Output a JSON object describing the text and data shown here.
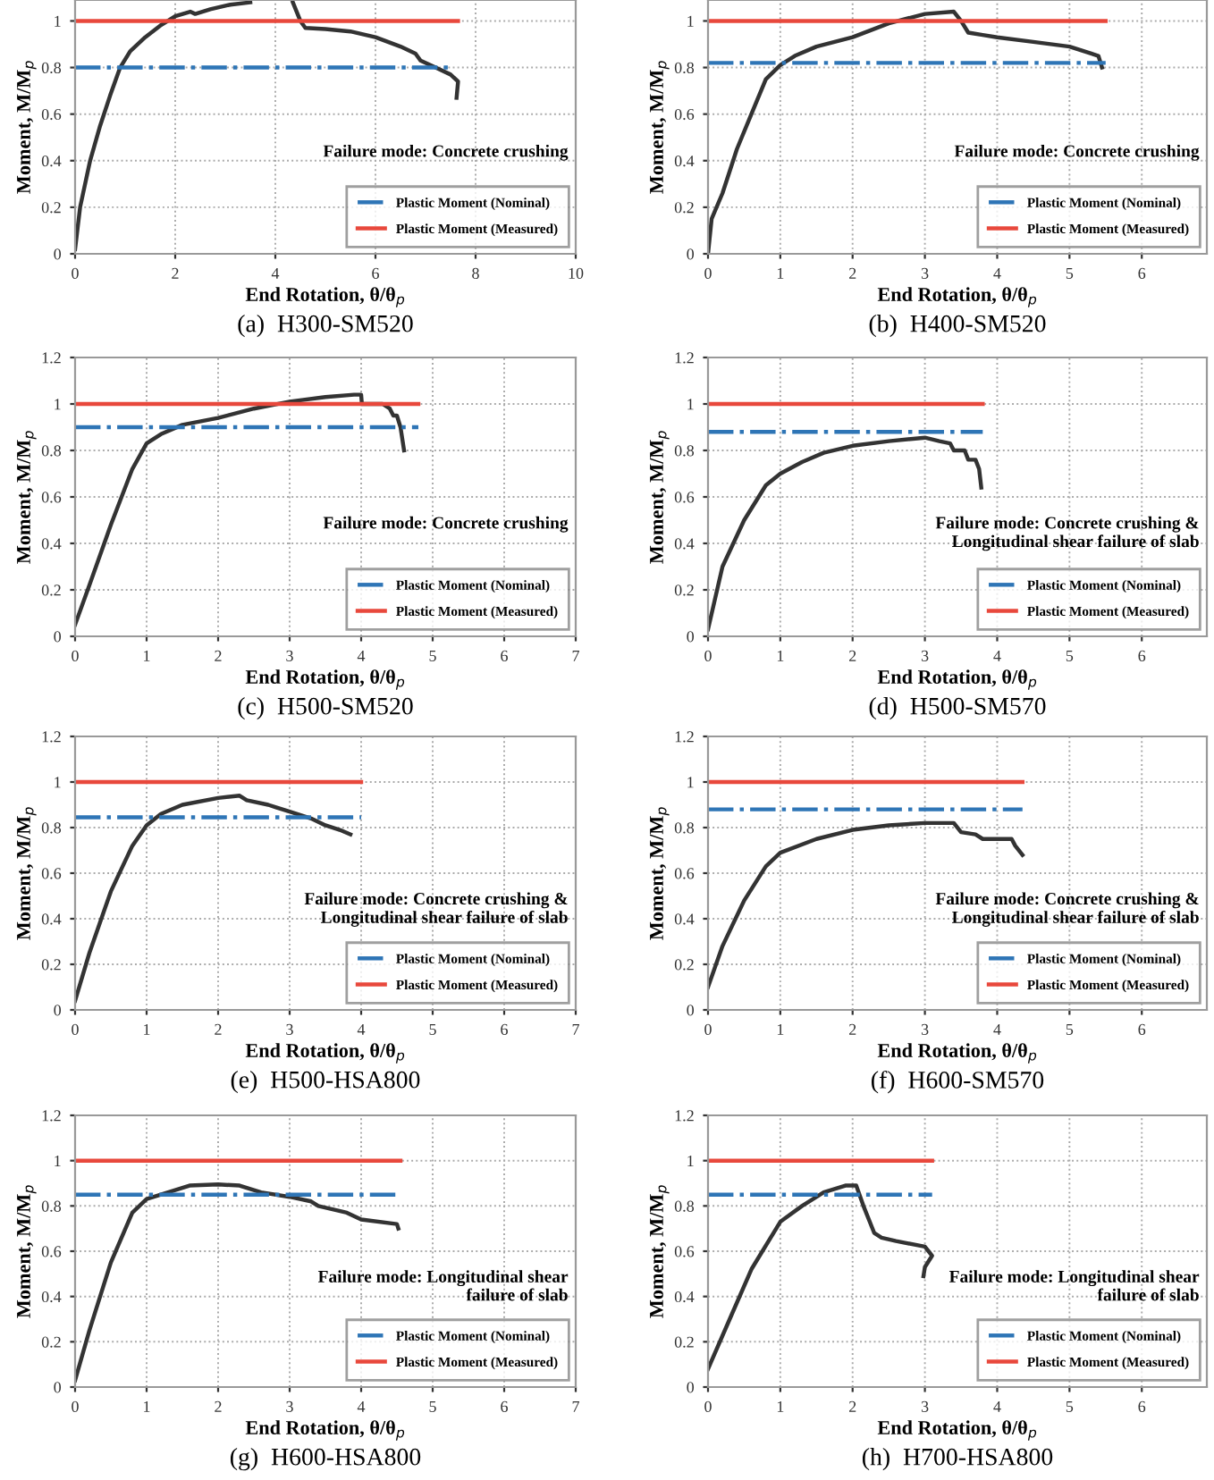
{
  "chart_data": [
    {
      "type": "line",
      "title": "(a)  H300-SM520",
      "xlabel": "End Rotation, θ/θ$_{p}$",
      "ylabel": "Moment, M/M$_{p}$",
      "xlim": [
        0,
        10
      ],
      "xticks": [
        0,
        2,
        4,
        6,
        8,
        10
      ],
      "ylim": [
        0,
        1.09
      ],
      "yticks": [
        0,
        0.2,
        0.4,
        0.6,
        0.8,
        1
      ],
      "grid": true,
      "legend": "bottom right",
      "annotations": [
        "Failure mode: Concrete crushing"
      ],
      "series": [
        {
          "color": "#333333",
          "line_style": "solid",
          "x": [
            0,
            0.1,
            0.3,
            0.5,
            0.7,
            0.9,
            1.1,
            1.4,
            1.7,
            2,
            2.3,
            2.4,
            2.7,
            3.1,
            3.5,
            4.0,
            4.35,
            4.5,
            4.6,
            5.0,
            5.5,
            6.0,
            6.5,
            6.8,
            6.9,
            7.2,
            7.5,
            7.65,
            7.62
          ],
          "values": [
            0.02,
            0.2,
            0.4,
            0.55,
            0.68,
            0.8,
            0.87,
            0.93,
            0.98,
            1.02,
            1.04,
            1.03,
            1.05,
            1.07,
            1.08,
            null,
            1.08,
            1.0,
            0.97,
            0.965,
            0.955,
            0.93,
            0.89,
            0.86,
            0.83,
            0.8,
            0.77,
            0.74,
            0.67
          ]
        },
        {
          "name": "Plastic Moment (Nominal)",
          "color": "#2e75b6",
          "line_style": "dashdot",
          "x": [
            0,
            7.55
          ],
          "values": [
            0.8,
            0.8
          ]
        },
        {
          "name": "Plastic Moment (Measured)",
          "color": "#e8483c",
          "line_style": "solid",
          "x": [
            0,
            7.65
          ],
          "values": [
            1,
            1
          ]
        }
      ]
    },
    {
      "type": "line",
      "title": "(b)  H400-SM520",
      "xlabel": "End Rotation, θ/θ$_{p}$",
      "ylabel": "Moment, M/M$_{p}$",
      "xlim": [
        0,
        6.9
      ],
      "xticks": [
        0,
        1,
        2,
        3,
        4,
        5,
        6
      ],
      "ylim": [
        0,
        1.09
      ],
      "yticks": [
        0,
        0.2,
        0.4,
        0.6,
        0.8,
        1
      ],
      "grid": true,
      "legend": "bottom right",
      "annotations": [
        "Failure mode: Concrete crushing"
      ],
      "series": [
        {
          "color": "#333333",
          "line_style": "solid",
          "x": [
            0,
            0.05,
            0.2,
            0.4,
            0.6,
            0.8,
            1,
            1.2,
            1.5,
            2,
            2.5,
            3,
            3.4,
            3.5,
            3.6,
            3.8,
            4,
            4.5,
            5,
            5.3,
            5.4,
            5.45
          ],
          "values": [
            0,
            0.15,
            0.26,
            0.45,
            0.6,
            0.75,
            0.81,
            0.85,
            0.89,
            0.93,
            0.99,
            1.03,
            1.04,
            1.0,
            0.95,
            0.94,
            0.93,
            0.91,
            0.89,
            0.86,
            0.85,
            0.8
          ]
        },
        {
          "name": "Plastic Moment (Nominal)",
          "color": "#2e75b6",
          "line_style": "dashdot",
          "x": [
            0,
            5.5
          ],
          "values": [
            0.82,
            0.82
          ]
        },
        {
          "name": "Plastic Moment (Measured)",
          "color": "#e8483c",
          "line_style": "solid",
          "x": [
            0,
            5.5
          ],
          "values": [
            1,
            1
          ]
        }
      ]
    },
    {
      "type": "line",
      "title": "(c)  H500-SM520",
      "xlabel": "End Rotation, θ/θ$_{p}$",
      "ylabel": "Moment, M/M$_{p}$",
      "xlim": [
        0,
        7
      ],
      "xticks": [
        0,
        1,
        2,
        3,
        4,
        5,
        6,
        7
      ],
      "ylim": [
        0,
        1.2
      ],
      "yticks": [
        0,
        0.2,
        0.4,
        0.6,
        0.8,
        1,
        1.2
      ],
      "grid": true,
      "legend": "bottom right",
      "annotations": [
        "Failure mode: Concrete crushing"
      ],
      "series": [
        {
          "color": "#333333",
          "line_style": "solid",
          "x": [
            0,
            0.2,
            0.5,
            0.8,
            1,
            1.2,
            1.5,
            2,
            2.5,
            3,
            3.5,
            3.9,
            4,
            4.01,
            4.3,
            4.4,
            4.45,
            4.5,
            4.55,
            4.6
          ],
          "values": [
            0.05,
            0.22,
            0.48,
            0.72,
            0.83,
            0.87,
            0.91,
            0.94,
            0.98,
            1.01,
            1.03,
            1.04,
            1.04,
            1.0,
            1.0,
            0.98,
            0.95,
            0.95,
            0.9,
            0.8
          ]
        },
        {
          "name": "Plastic Moment (Nominal)",
          "color": "#2e75b6",
          "line_style": "dashdot",
          "x": [
            0,
            4.8
          ],
          "values": [
            0.9,
            0.9
          ]
        },
        {
          "name": "Plastic Moment (Measured)",
          "color": "#e8483c",
          "line_style": "solid",
          "x": [
            0,
            4.8
          ],
          "values": [
            1,
            1
          ]
        }
      ]
    },
    {
      "type": "line",
      "title": "(d)  H500-SM570",
      "xlabel": "End Rotation, θ/θ$_{p}$",
      "ylabel": "Moment, M/M$_{p}$",
      "xlim": [
        0,
        6.9
      ],
      "xticks": [
        0,
        1,
        2,
        3,
        4,
        5,
        6
      ],
      "ylim": [
        0,
        1.2
      ],
      "yticks": [
        0,
        0.2,
        0.4,
        0.6,
        0.8,
        1,
        1.2
      ],
      "grid": true,
      "legend": "bottom right",
      "annotations": [
        "Failure mode: Concrete crushing &\nLongitudinal shear failure of slab"
      ],
      "series": [
        {
          "color": "#333333",
          "line_style": "solid",
          "x": [
            0,
            0.2,
            0.5,
            0.8,
            1,
            1.3,
            1.6,
            2,
            2.5,
            3,
            3.2,
            3.35,
            3.4,
            3.55,
            3.6,
            3.7,
            3.75,
            3.78
          ],
          "values": [
            0.03,
            0.3,
            0.5,
            0.65,
            0.7,
            0.75,
            0.79,
            0.82,
            0.84,
            0.855,
            0.84,
            0.83,
            0.8,
            0.8,
            0.76,
            0.76,
            0.72,
            0.64
          ]
        },
        {
          "name": "Plastic Moment (Nominal)",
          "color": "#2e75b6",
          "line_style": "dashdot",
          "x": [
            0,
            3.8
          ],
          "values": [
            0.88,
            0.88
          ]
        },
        {
          "name": "Plastic Moment (Measured)",
          "color": "#e8483c",
          "line_style": "solid",
          "x": [
            0,
            3.8
          ],
          "values": [
            1,
            1
          ]
        }
      ]
    },
    {
      "type": "line",
      "title": "(e)  H500-HSA800",
      "xlabel": "End Rotation, θ/θ$_{p}$",
      "ylabel": "Moment, M/M$_{p}$",
      "xlim": [
        0,
        7
      ],
      "xticks": [
        0,
        1,
        2,
        3,
        4,
        5,
        6,
        7
      ],
      "ylim": [
        0,
        1.2
      ],
      "yticks": [
        0,
        0.2,
        0.4,
        0.6,
        0.8,
        1,
        1.2
      ],
      "grid": true,
      "legend": "bottom right",
      "annotations": [
        "Failure mode: Concrete crushing &\nLongitudinal shear failure of slab"
      ],
      "series": [
        {
          "color": "#333333",
          "line_style": "solid",
          "x": [
            0,
            0.2,
            0.5,
            0.8,
            1,
            1.2,
            1.5,
            2,
            2.3,
            2.4,
            2.7,
            2.8,
            3,
            3.3,
            3.5,
            3.7,
            3.85
          ],
          "values": [
            0.04,
            0.25,
            0.52,
            0.72,
            0.81,
            0.86,
            0.9,
            0.93,
            0.94,
            0.92,
            0.9,
            0.89,
            0.87,
            0.84,
            0.81,
            0.79,
            0.77
          ]
        },
        {
          "name": "Plastic Moment (Nominal)",
          "color": "#2e75b6",
          "line_style": "dashdot",
          "x": [
            0,
            4.0
          ],
          "values": [
            0.845,
            0.845
          ]
        },
        {
          "name": "Plastic Moment (Measured)",
          "color": "#e8483c",
          "line_style": "solid",
          "x": [
            0,
            4.0
          ],
          "values": [
            1,
            1
          ]
        }
      ]
    },
    {
      "type": "line",
      "title": "(f)  H600-SM570",
      "xlabel": "End Rotation, θ/θ$_{p}$",
      "ylabel": "Moment, M/M$_{p}$",
      "xlim": [
        0,
        6.9
      ],
      "xticks": [
        0,
        1,
        2,
        3,
        4,
        5,
        6
      ],
      "ylim": [
        0,
        1.2
      ],
      "yticks": [
        0,
        0.2,
        0.4,
        0.6,
        0.8,
        1,
        1.2
      ],
      "grid": true,
      "legend": "bottom right",
      "annotations": [
        "Failure mode: Concrete crushing &\nLongitudinal shear failure of slab"
      ],
      "series": [
        {
          "color": "#333333",
          "line_style": "solid",
          "x": [
            0,
            0.2,
            0.5,
            0.8,
            1,
            1.5,
            2,
            2.5,
            3,
            3.4,
            3.5,
            3.7,
            3.8,
            4.2,
            4.25,
            4.35
          ],
          "values": [
            0.1,
            0.28,
            0.48,
            0.63,
            0.69,
            0.75,
            0.79,
            0.81,
            0.82,
            0.82,
            0.78,
            0.77,
            0.75,
            0.75,
            0.72,
            0.68
          ]
        },
        {
          "name": "Plastic Moment (Nominal)",
          "color": "#2e75b6",
          "line_style": "dashdot",
          "x": [
            0,
            4.35
          ],
          "values": [
            0.88,
            0.88
          ]
        },
        {
          "name": "Plastic Moment (Measured)",
          "color": "#e8483c",
          "line_style": "solid",
          "x": [
            0,
            4.35
          ],
          "values": [
            1,
            1
          ]
        }
      ]
    },
    {
      "type": "line",
      "title": "(g)  H600-HSA800",
      "xlabel": "End Rotation, θ/θ$_{p}$",
      "ylabel": "Moment, M/M$_{p}$",
      "xlim": [
        0,
        7
      ],
      "xticks": [
        0,
        1,
        2,
        3,
        4,
        5,
        6,
        7
      ],
      "ylim": [
        0,
        1.2
      ],
      "yticks": [
        0,
        0.2,
        0.4,
        0.6,
        0.8,
        1,
        1.2
      ],
      "grid": true,
      "legend": "bottom right",
      "annotations": [
        "Failure mode: Longitudinal shear\nfailure of slab"
      ],
      "series": [
        {
          "color": "#333333",
          "line_style": "solid",
          "x": [
            0,
            0.2,
            0.5,
            0.8,
            1,
            1.3,
            1.6,
            2,
            2.3,
            2.6,
            3,
            3.3,
            3.4,
            3.8,
            4,
            4.5,
            4.52
          ],
          "values": [
            0.03,
            0.25,
            0.55,
            0.77,
            0.83,
            0.86,
            0.89,
            0.895,
            0.89,
            0.86,
            0.84,
            0.82,
            0.8,
            0.77,
            0.74,
            0.72,
            0.7
          ]
        },
        {
          "name": "Plastic Moment (Nominal)",
          "color": "#2e75b6",
          "line_style": "dashdot",
          "x": [
            0,
            4.5
          ],
          "values": [
            0.85,
            0.85
          ]
        },
        {
          "name": "Plastic Moment (Measured)",
          "color": "#e8483c",
          "line_style": "solid",
          "x": [
            0,
            4.55
          ],
          "values": [
            1,
            1
          ]
        }
      ]
    },
    {
      "type": "line",
      "title": "(h)  H700-HSA800",
      "xlabel": "End Rotation, θ/θ$_{p}$",
      "ylabel": "Moment, M/M$_{p}$",
      "xlim": [
        0,
        6.9
      ],
      "xticks": [
        0,
        1,
        2,
        3,
        4,
        5,
        6
      ],
      "ylim": [
        0,
        1.2
      ],
      "yticks": [
        0,
        0.2,
        0.4,
        0.6,
        0.8,
        1,
        1.2
      ],
      "grid": true,
      "legend": "bottom right",
      "annotations": [
        "Failure mode: Longitudinal shear\nfailure of slab"
      ],
      "series": [
        {
          "color": "#333333",
          "line_style": "solid",
          "x": [
            0,
            0.3,
            0.6,
            1,
            1.3,
            1.6,
            1.9,
            2.05,
            2.15,
            2.3,
            2.4,
            2.6,
            3,
            3.05,
            3.1,
            3.0,
            2.98
          ],
          "values": [
            0.08,
            0.3,
            0.52,
            0.73,
            0.8,
            0.86,
            0.89,
            0.89,
            0.8,
            0.68,
            0.66,
            0.645,
            0.62,
            0.6,
            0.58,
            0.53,
            0.49
          ]
        },
        {
          "name": "Plastic Moment (Nominal)",
          "color": "#2e75b6",
          "line_style": "dashdot",
          "x": [
            0,
            3.1
          ],
          "values": [
            0.85,
            0.85
          ]
        },
        {
          "name": "Plastic Moment (Measured)",
          "color": "#e8483c",
          "line_style": "solid",
          "x": [
            0,
            3.1
          ],
          "values": [
            1,
            1
          ]
        }
      ]
    }
  ]
}
